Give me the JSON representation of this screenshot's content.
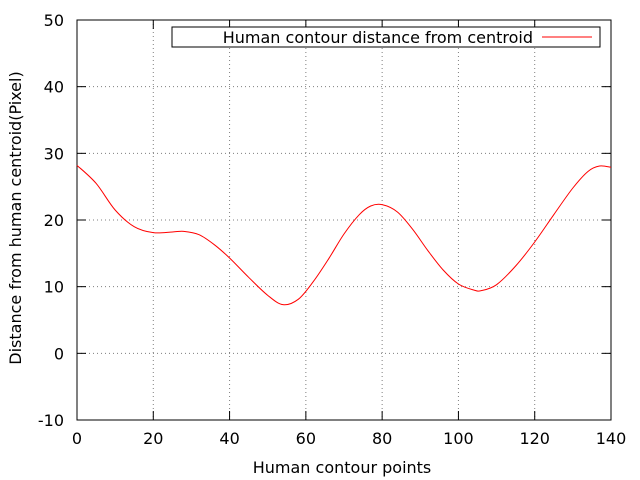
{
  "chart_data": {
    "type": "line",
    "title": "",
    "xlabel": "Human contour points",
    "ylabel": "Distance from human centroid(Pixel)",
    "xlim": [
      0,
      140
    ],
    "ylim": [
      -10,
      50
    ],
    "xticks": [
      0,
      20,
      40,
      60,
      80,
      100,
      120,
      140
    ],
    "yticks": [
      -10,
      0,
      10,
      20,
      30,
      40,
      50
    ],
    "grid": true,
    "legend_position": "top-right",
    "series": [
      {
        "name": "Human contour distance from centroid",
        "color": "#ff0000",
        "x": [
          0,
          5,
          10,
          15,
          20,
          25,
          28,
          32,
          36,
          40,
          45,
          50,
          54,
          58,
          62,
          66,
          70,
          74,
          77,
          80,
          84,
          88,
          92,
          96,
          100,
          104,
          106,
          110,
          115,
          120,
          125,
          130,
          134,
          137,
          140
        ],
        "y": [
          28.2,
          25.5,
          21.5,
          19.0,
          18.1,
          18.2,
          18.3,
          17.8,
          16.3,
          14.3,
          11.4,
          8.7,
          7.3,
          8.1,
          10.8,
          14.2,
          17.9,
          20.8,
          22.1,
          22.3,
          21.2,
          18.6,
          15.4,
          12.5,
          10.4,
          9.5,
          9.4,
          10.3,
          13.1,
          16.7,
          20.8,
          24.8,
          27.3,
          28.1,
          27.9
        ]
      }
    ]
  }
}
